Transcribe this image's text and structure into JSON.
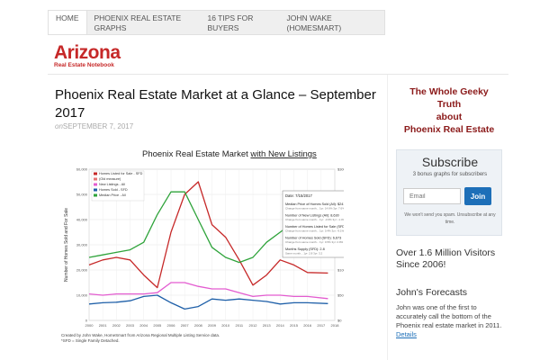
{
  "nav": {
    "items": [
      "HOME",
      "PHOENIX REAL ESTATE GRAPHS",
      "16 TIPS FOR BUYERS",
      "JOHN WAKE (HOMESMART)"
    ]
  },
  "logo": {
    "title": "Arizona",
    "subtitle": "Real Estate Notebook"
  },
  "post": {
    "title": "Phoenix Real Estate Market at a Glance – September 2017",
    "meta_on": "on",
    "date": "SEPTEMBER 7, 2017"
  },
  "chart_data": {
    "type": "line",
    "title": "Phoenix Real Estate Market",
    "title_suffix": "with New Listings",
    "ylabel": "Number of Homes Sold and For Sale",
    "ylim_left": [
      0,
      60000
    ],
    "ylim_right": [
      0,
      300000
    ],
    "left_ticks": [
      "0",
      "10,000",
      "20,000",
      "30,000",
      "40,000",
      "50,000",
      "60,000"
    ],
    "right_ticks": [
      "$0",
      "$50,000",
      "$100,000",
      "$150,000",
      "$200,000",
      "$250,000",
      "$300,000"
    ],
    "x_ticks": [
      "2000",
      "2001",
      "2002",
      "2003",
      "2004",
      "2005",
      "2006",
      "2007",
      "2008",
      "2009",
      "2010",
      "2011",
      "2012",
      "2013",
      "2014",
      "2015",
      "2016",
      "2017",
      "2018"
    ],
    "x": [
      2000,
      2001,
      2002,
      2003,
      2004,
      2005,
      2006,
      2007,
      2008,
      2009,
      2010,
      2011,
      2012,
      2013,
      2014,
      2015,
      2016,
      2017.5
    ],
    "series": [
      {
        "name": "Homes Listed for Sale - SFD",
        "color": "#c62828",
        "axis": "left",
        "values": [
          22000,
          24000,
          25000,
          24000,
          18000,
          13000,
          35000,
          50000,
          55000,
          38000,
          33000,
          24000,
          14000,
          18000,
          24000,
          22000,
          19000,
          18779
        ]
      },
      {
        "name": "(Old measure)",
        "color": "#e57373",
        "axis": "left",
        "values": [
          null,
          null,
          null,
          null,
          null,
          null,
          null,
          null,
          null,
          null,
          null,
          null,
          null,
          null,
          null,
          null,
          null,
          null
        ]
      },
      {
        "name": "New Listings - All",
        "color": "#e35cd0",
        "axis": "left",
        "values": [
          10500,
          10000,
          10500,
          10500,
          10500,
          11000,
          15000,
          15000,
          13500,
          12500,
          12500,
          11000,
          9500,
          10000,
          10000,
          9500,
          9500,
          8630
        ]
      },
      {
        "name": "Homes Sold - SFD",
        "color": "#1e5fa8",
        "axis": "left",
        "values": [
          6500,
          7000,
          7200,
          7800,
          9500,
          10000,
          7000,
          4500,
          5500,
          8500,
          8000,
          8500,
          8000,
          7500,
          6500,
          7000,
          7000,
          6673
        ]
      },
      {
        "name": "Median Price - All",
        "color": "#2ea33a",
        "axis": "right",
        "values": [
          125000,
          130000,
          135000,
          140000,
          155000,
          210000,
          255000,
          255000,
          200000,
          145000,
          125000,
          115000,
          125000,
          155000,
          175000,
          195000,
          210000,
          241000
        ]
      }
    ],
    "callout": {
      "date": "Date: 7/15/2017",
      "lines": [
        {
          "label": "Median Price of Homes Sold (All):",
          "value": "$241,000",
          "sub": "Change from same month... 1yr: 14.6%  3yr: 7.6%"
        },
        {
          "label": "Number of New Listings (All):",
          "value": "8,630",
          "sub": "Change from same month... 1yr: -3.6%  3yr: -1.4%"
        },
        {
          "label": "Number of Homes Listed for Sale (SFD):",
          "value": "18,779",
          "sub": "Change from same month... 1yr: 0.4%  3yr: -9.1%"
        },
        {
          "label": "Number of Homes Sold (SFD):",
          "value": "6,673",
          "sub": "Change from same month... 1yr: 0.5%  3yr: 2.9%"
        },
        {
          "label": "Months Supply (SFD):",
          "value": "2.8",
          "sub": "Same month... 1yr: 2.8  3yr: 3.2"
        }
      ]
    },
    "footnote": "Created by John Wake, HomeSmart from Arizona Regional Multiple Listing Service data.",
    "footnote2": "*SFD = Single Family Detached."
  },
  "sidebar": {
    "heading": [
      "The Whole Geeky",
      "Truth",
      "about",
      "Phoenix Real Estate"
    ],
    "subscribe": {
      "title": "Subscribe",
      "subtitle": "3 bonus graphs for subscribers",
      "placeholder": "Email",
      "button": "Join",
      "note": "We won't send you spam. Unsubscribe at any time."
    },
    "visitors": "Over 1.6 Million Visitors Since 2006!",
    "forecasts": {
      "heading": "John's Forecasts",
      "text": "John was one of the first to accurately call the bottom of the Phoenix real estate market in 2011.",
      "link": "Details"
    }
  }
}
